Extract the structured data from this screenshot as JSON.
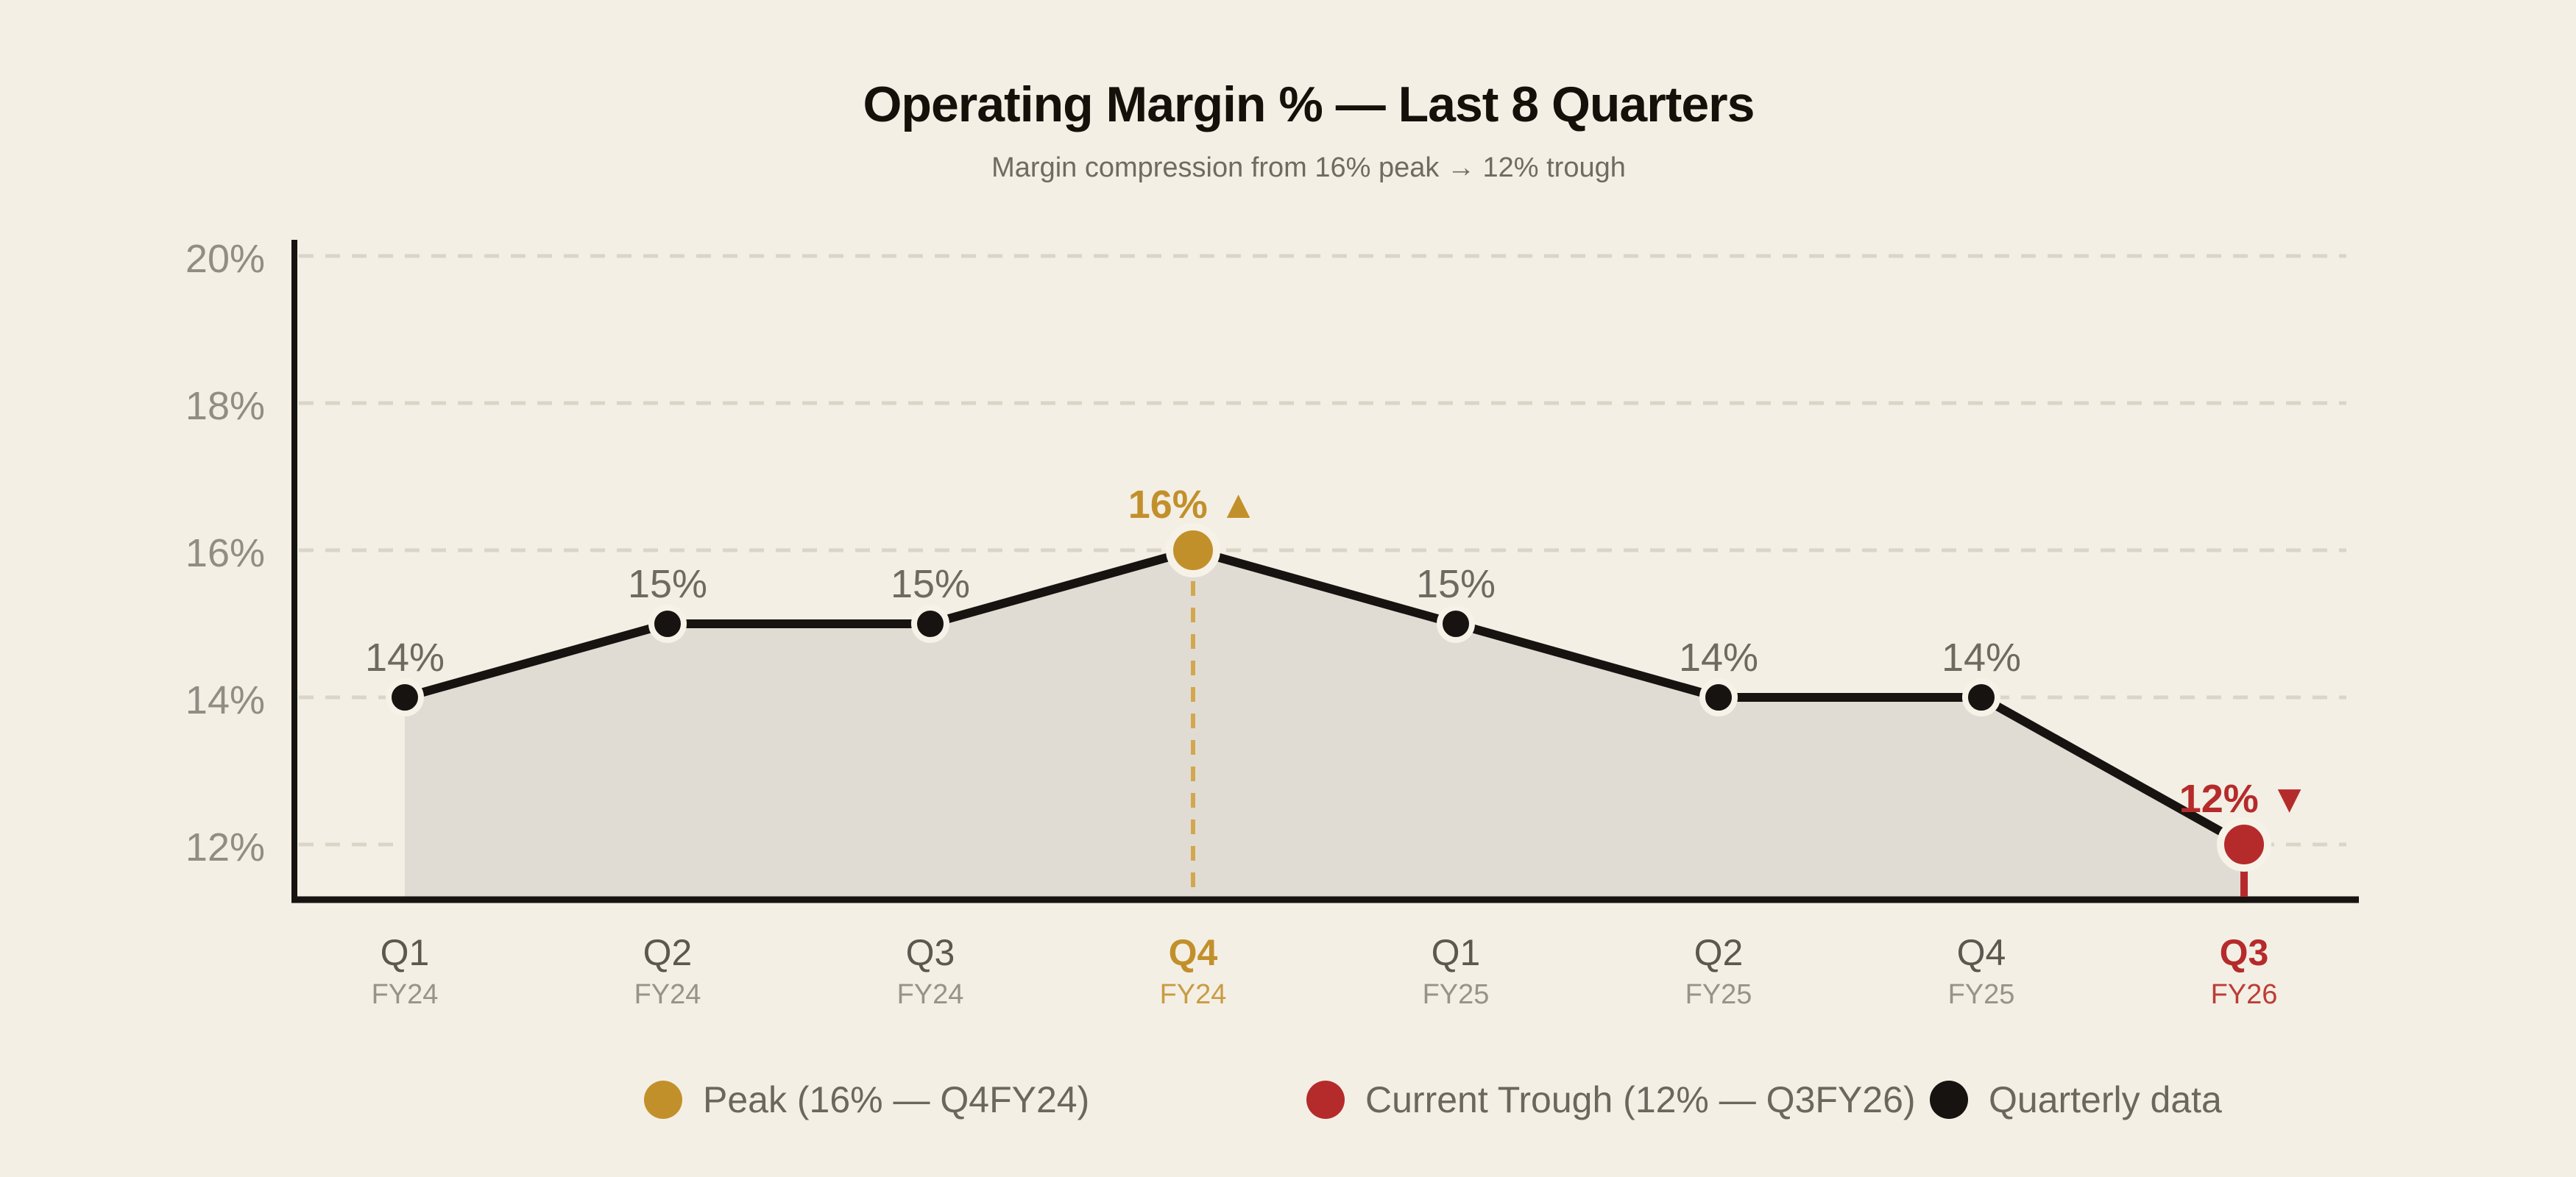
{
  "colors": {
    "background": "#F4EFE5",
    "area_fill": "#E1DCD3",
    "grid": "#DBD5C8",
    "ink": "#161310",
    "gold": "#C2902B",
    "gold_dash": "#D2A74F",
    "gold_fy": "#C89C42",
    "red": "#B52B2B",
    "red_fy": "#BB3E36",
    "halo": "#F7F2E8",
    "y_tick_text": "#918D85",
    "x_q_text": "#5C5850",
    "x_fy_text": "#989289",
    "value_text": "#6E6A62",
    "title_text": "#151009",
    "subtitle_text": "#6F6A62",
    "legend_text": "#6B665E"
  },
  "chart_data": {
    "type": "line",
    "title": "Operating Margin % — Last 8 Quarters",
    "subtitle": "Margin compression from 16% peak → 12% trough",
    "unit": "%",
    "categories": [
      {
        "quarter": "Q1",
        "fy": "FY24",
        "role": "normal"
      },
      {
        "quarter": "Q2",
        "fy": "FY24",
        "role": "normal"
      },
      {
        "quarter": "Q3",
        "fy": "FY24",
        "role": "normal"
      },
      {
        "quarter": "Q4",
        "fy": "FY24",
        "role": "peak"
      },
      {
        "quarter": "Q1",
        "fy": "FY25",
        "role": "normal"
      },
      {
        "quarter": "Q2",
        "fy": "FY25",
        "role": "normal"
      },
      {
        "quarter": "Q4",
        "fy": "FY25",
        "role": "normal"
      },
      {
        "quarter": "Q3",
        "fy": "FY26",
        "role": "trough"
      }
    ],
    "values": [
      14,
      15,
      15,
      16,
      15,
      14,
      14,
      12
    ],
    "point_labels": [
      "14%",
      "15%",
      "15%",
      "16%",
      "15%",
      "14%",
      "14%",
      "12%"
    ],
    "peak": {
      "index": 3,
      "label": "16%",
      "marker": "▲",
      "quarter": "Q4",
      "fy": "FY24"
    },
    "trough": {
      "index": 7,
      "label": "12%",
      "marker": "▼",
      "quarter": "Q3",
      "fy": "FY26"
    },
    "y_ticks": [
      {
        "label": "20%",
        "value": 20
      },
      {
        "label": "18%",
        "value": 18
      },
      {
        "label": "16%",
        "value": 16
      },
      {
        "label": "14%",
        "value": 14
      },
      {
        "label": "12%",
        "value": 12
      }
    ],
    "ylim": [
      11.3,
      20.2
    ],
    "grid": true,
    "area_filled": true,
    "legend_position": "bottom",
    "legend": [
      {
        "label": "Peak (16% — Q4FY24)",
        "color_key": "gold"
      },
      {
        "label": "Current Trough (12% — Q3FY26)",
        "color_key": "red"
      },
      {
        "label": "Quarterly data",
        "color_key": "ink"
      }
    ]
  }
}
